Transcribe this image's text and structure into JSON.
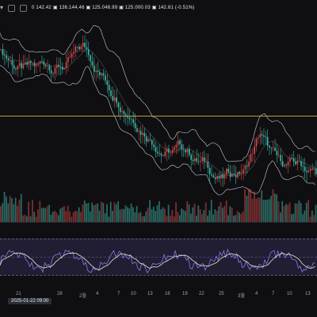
{
  "toolbar": {
    "symbol_icon": "chart-icon",
    "ohlc": "0 142.42 ▣ 136.144.46 ▣ 125.046.99 ▣ 125.000.03 ▣ 142.61 (-0.51%)"
  },
  "axis": {
    "ticks": [
      {
        "label": "21",
        "pos": 20
      },
      {
        "label": "28",
        "pos": 72
      },
      {
        "label": "2월",
        "pos": 100
      },
      {
        "label": "4",
        "pos": 121
      },
      {
        "label": "7",
        "pos": 148
      },
      {
        "label": "10",
        "pos": 165
      },
      {
        "label": "13",
        "pos": 186
      },
      {
        "label": "16",
        "pos": 208
      },
      {
        "label": "19",
        "pos": 230
      },
      {
        "label": "22",
        "pos": 251
      },
      {
        "label": "25",
        "pos": 276
      },
      {
        "label": "3월",
        "pos": 300
      },
      {
        "label": "4",
        "pos": 322
      },
      {
        "label": "7",
        "pos": 343
      },
      {
        "label": "10",
        "pos": 362
      },
      {
        "label": "13",
        "pos": 385
      }
    ]
  },
  "crosshair": {
    "label": "2025-01-22 09:00"
  },
  "colors": {
    "bg": "#0f0f12",
    "candle_up": "#d34c4a",
    "candle_dn": "#3fb8a8",
    "band": "#c8ccd8",
    "level": "#c69a3c",
    "rsi_line": "#8a7be8",
    "rsi_signal": "#ece8c8"
  }
}
